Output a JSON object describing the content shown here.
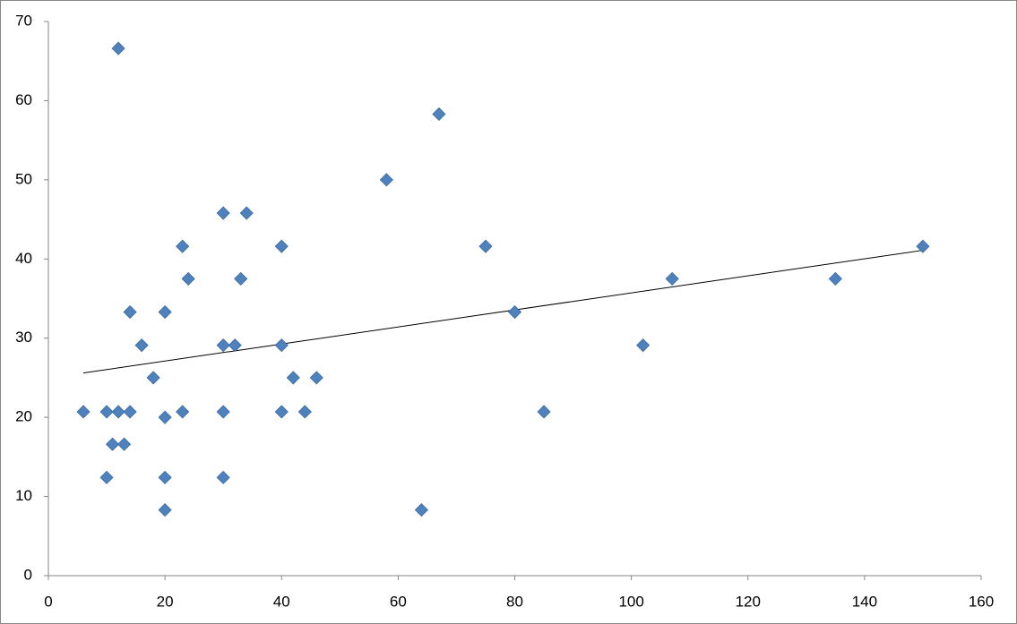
{
  "chart_data": {
    "type": "scatter",
    "x": [
      6,
      10,
      12,
      14,
      10,
      11,
      13,
      12,
      14,
      16,
      18,
      20,
      20,
      20,
      20,
      23,
      23,
      24,
      30,
      30,
      30,
      30,
      32,
      33,
      34,
      40,
      40,
      40,
      42,
      44,
      46,
      58,
      64,
      67,
      75,
      80,
      85,
      102,
      107,
      135,
      150
    ],
    "y": [
      20.7,
      20.7,
      20.7,
      20.7,
      12.4,
      16.6,
      16.6,
      66.6,
      33.3,
      29.1,
      25,
      33.3,
      20,
      12.4,
      8.3,
      41.6,
      20.7,
      37.5,
      45.8,
      29.1,
      20.7,
      12.4,
      29.1,
      37.5,
      45.8,
      41.6,
      29.1,
      20.7,
      25,
      20.7,
      25,
      50,
      8.3,
      58.3,
      41.6,
      33.3,
      20.7,
      29.1,
      37.5,
      37.5,
      41.6
    ],
    "color": "#4f81bd",
    "trendline": {
      "x": [
        6,
        150
      ],
      "y": [
        25.6,
        41.1
      ],
      "color": "#000000"
    },
    "xlim": [
      0,
      160
    ],
    "xticks": [
      0,
      20,
      40,
      60,
      80,
      100,
      120,
      140,
      160
    ],
    "ylim": [
      0,
      70
    ],
    "yticks": [
      0,
      10,
      20,
      30,
      40,
      50,
      60,
      70
    ],
    "grid": false
  }
}
